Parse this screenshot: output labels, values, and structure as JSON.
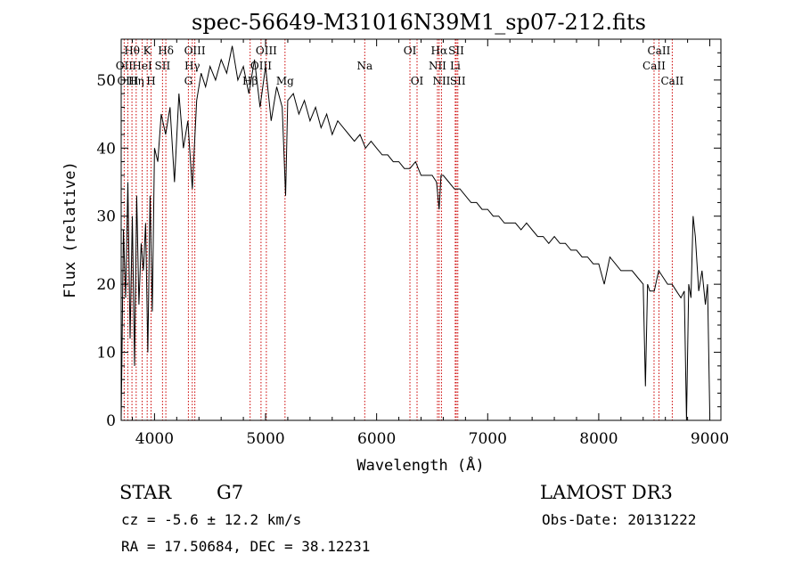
{
  "chart_data": {
    "type": "line",
    "title": "spec-56649-M31016N39M1_sp07-212.fits",
    "xlabel": "Wavelength (Å)",
    "ylabel": "Flux (relative)",
    "xlim": [
      3700,
      9100
    ],
    "ylim": [
      0,
      56
    ],
    "xticks": [
      4000,
      5000,
      6000,
      7000,
      8000,
      9000
    ],
    "yticks": [
      0,
      10,
      20,
      30,
      40,
      50
    ],
    "grid": false,
    "line_color": "#000000",
    "marker_color": "#cc0000",
    "series": [
      {
        "x": [
          3700,
          3720,
          3740,
          3760,
          3780,
          3800,
          3820,
          3840,
          3860,
          3880,
          3900,
          3920,
          3940,
          3960,
          3980,
          4000,
          4030,
          4060,
          4100,
          4140,
          4180,
          4220,
          4260,
          4300,
          4340,
          4380,
          4420,
          4460,
          4500,
          4550,
          4600,
          4650,
          4700,
          4750,
          4800,
          4850,
          4900,
          4950,
          5000,
          5050,
          5100,
          5150,
          5180,
          5200,
          5250,
          5300,
          5350,
          5400,
          5450,
          5500,
          5550,
          5600,
          5650,
          5700,
          5750,
          5800,
          5850,
          5900,
          5950,
          6000,
          6050,
          6100,
          6150,
          6200,
          6250,
          6300,
          6350,
          6400,
          6450,
          6500,
          6540,
          6563,
          6580,
          6600,
          6650,
          6700,
          6750,
          6800,
          6850,
          6900,
          6950,
          7000,
          7050,
          7100,
          7150,
          7200,
          7250,
          7300,
          7350,
          7400,
          7450,
          7500,
          7550,
          7600,
          7650,
          7700,
          7750,
          7800,
          7850,
          7900,
          7950,
          8000,
          8050,
          8100,
          8150,
          8200,
          8250,
          8300,
          8350,
          8400,
          8420,
          8440,
          8460,
          8500,
          8540,
          8580,
          8620,
          8660,
          8700,
          8740,
          8770,
          8790,
          8810,
          8830,
          8850,
          8870,
          8900,
          8930,
          8960,
          8980,
          9000
        ],
        "y": [
          0,
          28,
          18,
          35,
          12,
          30,
          8,
          33,
          17,
          26,
          22,
          29,
          10,
          33,
          16,
          40,
          38,
          45,
          42,
          46,
          35,
          48,
          40,
          44,
          34,
          47,
          51,
          49,
          52,
          50,
          53,
          51,
          55,
          50,
          52,
          48,
          53,
          46,
          52,
          44,
          49,
          46,
          33,
          47,
          48,
          45,
          47,
          44,
          46,
          43,
          45,
          42,
          44,
          43,
          42,
          41,
          42,
          40,
          41,
          40,
          39,
          39,
          38,
          38,
          37,
          37,
          38,
          36,
          36,
          36,
          35,
          31,
          36,
          36,
          35,
          34,
          34,
          33,
          32,
          32,
          31,
          31,
          30,
          30,
          29,
          29,
          29,
          28,
          29,
          28,
          27,
          27,
          26,
          27,
          26,
          26,
          25,
          25,
          24,
          24,
          23,
          23,
          20,
          24,
          23,
          22,
          22,
          22,
          21,
          20,
          5,
          20,
          19,
          19,
          22,
          21,
          20,
          20,
          19,
          18,
          19,
          0,
          20,
          18,
          30,
          27,
          19,
          22,
          17,
          20,
          1
        ]
      }
    ],
    "lines": [
      {
        "label": "Hθ",
        "x": 3797,
        "row": 0
      },
      {
        "label": "OII",
        "x": 3727,
        "row": 1
      },
      {
        "label": "OIII",
        "x": 3760,
        "row": 2
      },
      {
        "label": "Hη",
        "x": 3835,
        "row": 2
      },
      {
        "label": "HeI",
        "x": 3889,
        "row": 1
      },
      {
        "label": "K",
        "x": 3934,
        "row": 0
      },
      {
        "label": "SII",
        "x": 4072,
        "row": 1
      },
      {
        "label": "H",
        "x": 3969,
        "row": 2
      },
      {
        "label": "Hδ",
        "x": 4102,
        "row": 0
      },
      {
        "label": "OIII",
        "x": 4363,
        "row": 0
      },
      {
        "label": "Hγ",
        "x": 4340,
        "row": 1
      },
      {
        "label": "G",
        "x": 4305,
        "row": 2
      },
      {
        "label": "Hβ",
        "x": 4861,
        "row": 2
      },
      {
        "label": "OIII",
        "x": 5007,
        "row": 0
      },
      {
        "label": "OIII",
        "x": 4959,
        "row": 1
      },
      {
        "label": "Mg",
        "x": 5175,
        "row": 2
      },
      {
        "label": "Na",
        "x": 5893,
        "row": 1
      },
      {
        "label": "OI",
        "x": 6300,
        "row": 0
      },
      {
        "label": "OI",
        "x": 6364,
        "row": 2
      },
      {
        "label": "Hα",
        "x": 6563,
        "row": 0
      },
      {
        "label": "NII",
        "x": 6548,
        "row": 1
      },
      {
        "label": "NII",
        "x": 6584,
        "row": 2
      },
      {
        "label": "SII",
        "x": 6717,
        "row": 0
      },
      {
        "label": "Li",
        "x": 6708,
        "row": 1
      },
      {
        "label": "SII",
        "x": 6731,
        "row": 2
      },
      {
        "label": "CaII",
        "x": 8542,
        "row": 0
      },
      {
        "label": "CaII",
        "x": 8498,
        "row": 1
      },
      {
        "label": "CaII",
        "x": 8662,
        "row": 2
      }
    ]
  },
  "info": {
    "class_label": "STAR",
    "subclass": "G7",
    "survey": "LAMOST DR3",
    "cz": "cz = -5.6 ± 12.2 km/s",
    "obs_date": "Obs-Date: 20131222",
    "coords": "RA =  17.50684, DEC =  38.12231"
  }
}
